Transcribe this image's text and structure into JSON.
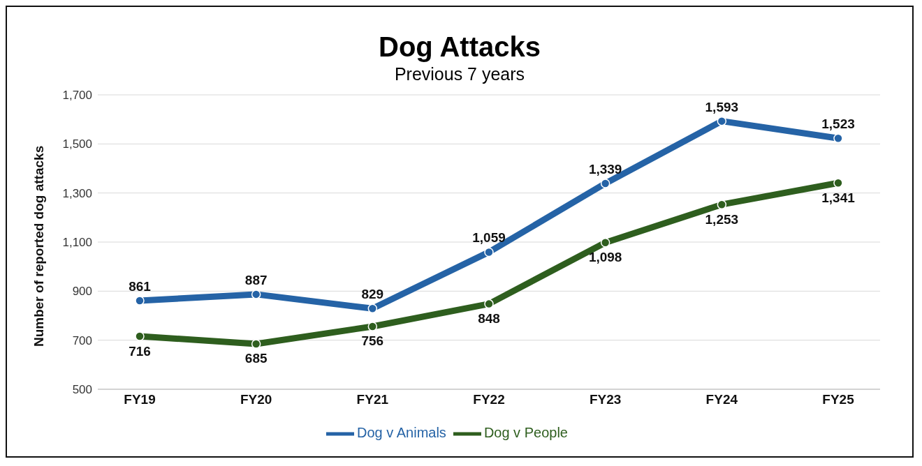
{
  "chart_data": {
    "type": "line",
    "title": "Dog Attacks",
    "subtitle": "Previous 7 years",
    "ylabel": "Number of reported dog attacks",
    "categories": [
      "FY19",
      "FY20",
      "FY21",
      "FY22",
      "FY23",
      "FY24",
      "FY25"
    ],
    "series": [
      {
        "name": "Dog v Animals",
        "color": "#2563a6",
        "values": [
          861,
          887,
          829,
          1059,
          1339,
          1593,
          1523
        ],
        "value_labels": [
          "861",
          "887",
          "829",
          "1,059",
          "1,339",
          "1,593",
          "1,523"
        ]
      },
      {
        "name": "Dog v People",
        "color": "#2e5e1e",
        "values": [
          716,
          685,
          756,
          848,
          1098,
          1253,
          1341
        ],
        "value_labels": [
          "716",
          "685",
          "756",
          "848",
          "1,098",
          "1,253",
          "1,341"
        ]
      }
    ],
    "ylim": [
      500,
      1700
    ],
    "yticks": [
      {
        "value": 500,
        "label": "500"
      },
      {
        "value": 700,
        "label": "700"
      },
      {
        "value": 900,
        "label": "900"
      },
      {
        "value": 1100,
        "label": "1,100"
      },
      {
        "value": 1300,
        "label": "1,300"
      },
      {
        "value": 1500,
        "label": "1,500"
      },
      {
        "value": 1700,
        "label": "1,700"
      }
    ],
    "grid": "y",
    "legend": "bottom",
    "marker": "circle",
    "line_style": "solid"
  }
}
